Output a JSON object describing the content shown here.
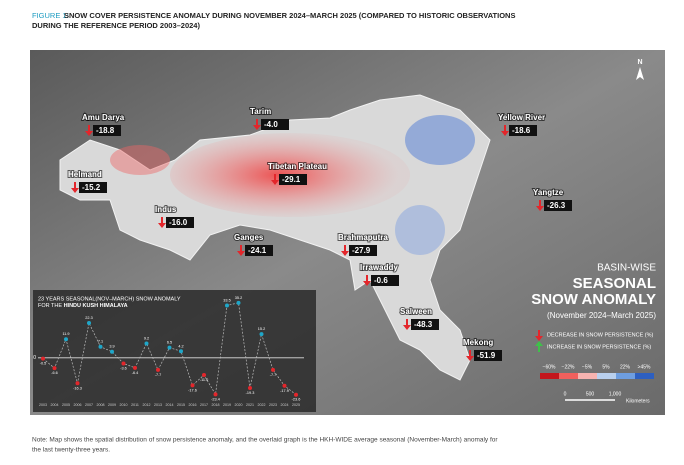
{
  "header": {
    "figure_label": "FIGURE 1:",
    "title": "SNOW COVER PERSISTENCE ANOMALY DURING NOVEMBER 2024–MARCH 2025 (COMPARED TO HISTORIC OBSERVATIONS",
    "title_line2": "DURING THE REFERENCE PERIOD 2003–2024)"
  },
  "map": {
    "north": "N",
    "basins": [
      {
        "name": "Amu Darya",
        "value": -18.8,
        "value_label": "-18.8"
      },
      {
        "name": "Tarim",
        "value": -4.0,
        "value_label": "-4.0"
      },
      {
        "name": "Yellow River",
        "value": -18.6,
        "value_label": "-18.6"
      },
      {
        "name": "Helmand",
        "value": -15.2,
        "value_label": "-15.2"
      },
      {
        "name": "Tibetan Plateau",
        "value": -29.1,
        "value_label": "-29.1"
      },
      {
        "name": "Indus",
        "value": -16.0,
        "value_label": "-16.0"
      },
      {
        "name": "Yangtze",
        "value": -26.3,
        "value_label": "-26.3"
      },
      {
        "name": "Ganges",
        "value": -24.1,
        "value_label": "-24.1"
      },
      {
        "name": "Brahmaputra",
        "value": -27.9,
        "value_label": "-27.9"
      },
      {
        "name": "Irrawaddy",
        "value": -0.6,
        "value_label": "-0.6"
      },
      {
        "name": "Salween",
        "value": -48.3,
        "value_label": "-48.3"
      },
      {
        "name": "Mekong",
        "value": -51.9,
        "value_label": "-51.9"
      }
    ],
    "side_title": {
      "line1": "BASIN-WISE",
      "line2": "SEASONAL",
      "line3": "SNOW ANOMALY",
      "line4": "(November 2024–March 2025)"
    },
    "legend": {
      "decrease": "DECREASE IN SNOW PERSISTENCE (%)",
      "increase": "INCREASE IN SNOW PERSISTENCE (%)",
      "scale_labels": [
        "−60%",
        "−22%",
        "−5%",
        "5%",
        "22%",
        ">45%"
      ],
      "scale_colors": [
        "#c4161c",
        "#f0605d",
        "#f7b3b0",
        "#b9d0ee",
        "#6e9ee0",
        "#2d5fc0"
      ]
    },
    "scale_bar": {
      "ticks": [
        "0",
        "500",
        "1,000"
      ],
      "unit": "Kilometers"
    }
  },
  "chart_data": {
    "type": "line",
    "title": "23 YEARS SEASONAL(NOV–MARCH) SNOW ANOMALY",
    "title_line2_prefix": "FOR THE ",
    "title_line2_bold": "HINDU KUSH HIMALAYA",
    "categories": [
      "2003",
      "2004",
      "2005",
      "2006",
      "2007",
      "2008",
      "2009",
      "2010",
      "2011",
      "2012",
      "2013",
      "2014",
      "2015",
      "2016",
      "2017",
      "2018",
      "2019",
      "2020",
      "2021",
      "2022",
      "2023",
      "2024",
      "2025"
    ],
    "values": [
      -0.5,
      -6.6,
      11.9,
      -16.3,
      22.3,
      7.1,
      3.9,
      -3.6,
      -6.4,
      9.2,
      -7.7,
      6.5,
      4.2,
      -17.6,
      -11.0,
      -23.4,
      33.5,
      35.2,
      -19.3,
      15.2,
      -7.7,
      -17.9,
      -23.6
    ],
    "value_labels": [
      "-0.5",
      "-6.6",
      "11.9",
      "-16.3",
      "22.3",
      "7.1",
      "3.9",
      "-3.6",
      "-6.4",
      "9.2",
      "-7.7",
      "6.5",
      "4.2",
      "-17.6",
      "-11.0",
      "-23.4",
      "33.5",
      "35.2",
      "-19.3",
      "15.2",
      "-7.7",
      "-17.9",
      "-23.6"
    ],
    "positive_color": "#1fa7c9",
    "negative_color": "#e3262b",
    "ylim": [
      -27,
      37
    ],
    "yticks": [
      0
    ]
  },
  "note": "Note: Map shows the spatial distribution of snow persistence anomaly, and the overlaid graph is the HKH-WIDE average seasonal (November-March) anomaly for",
  "note_line2": "the last twenty-three years."
}
